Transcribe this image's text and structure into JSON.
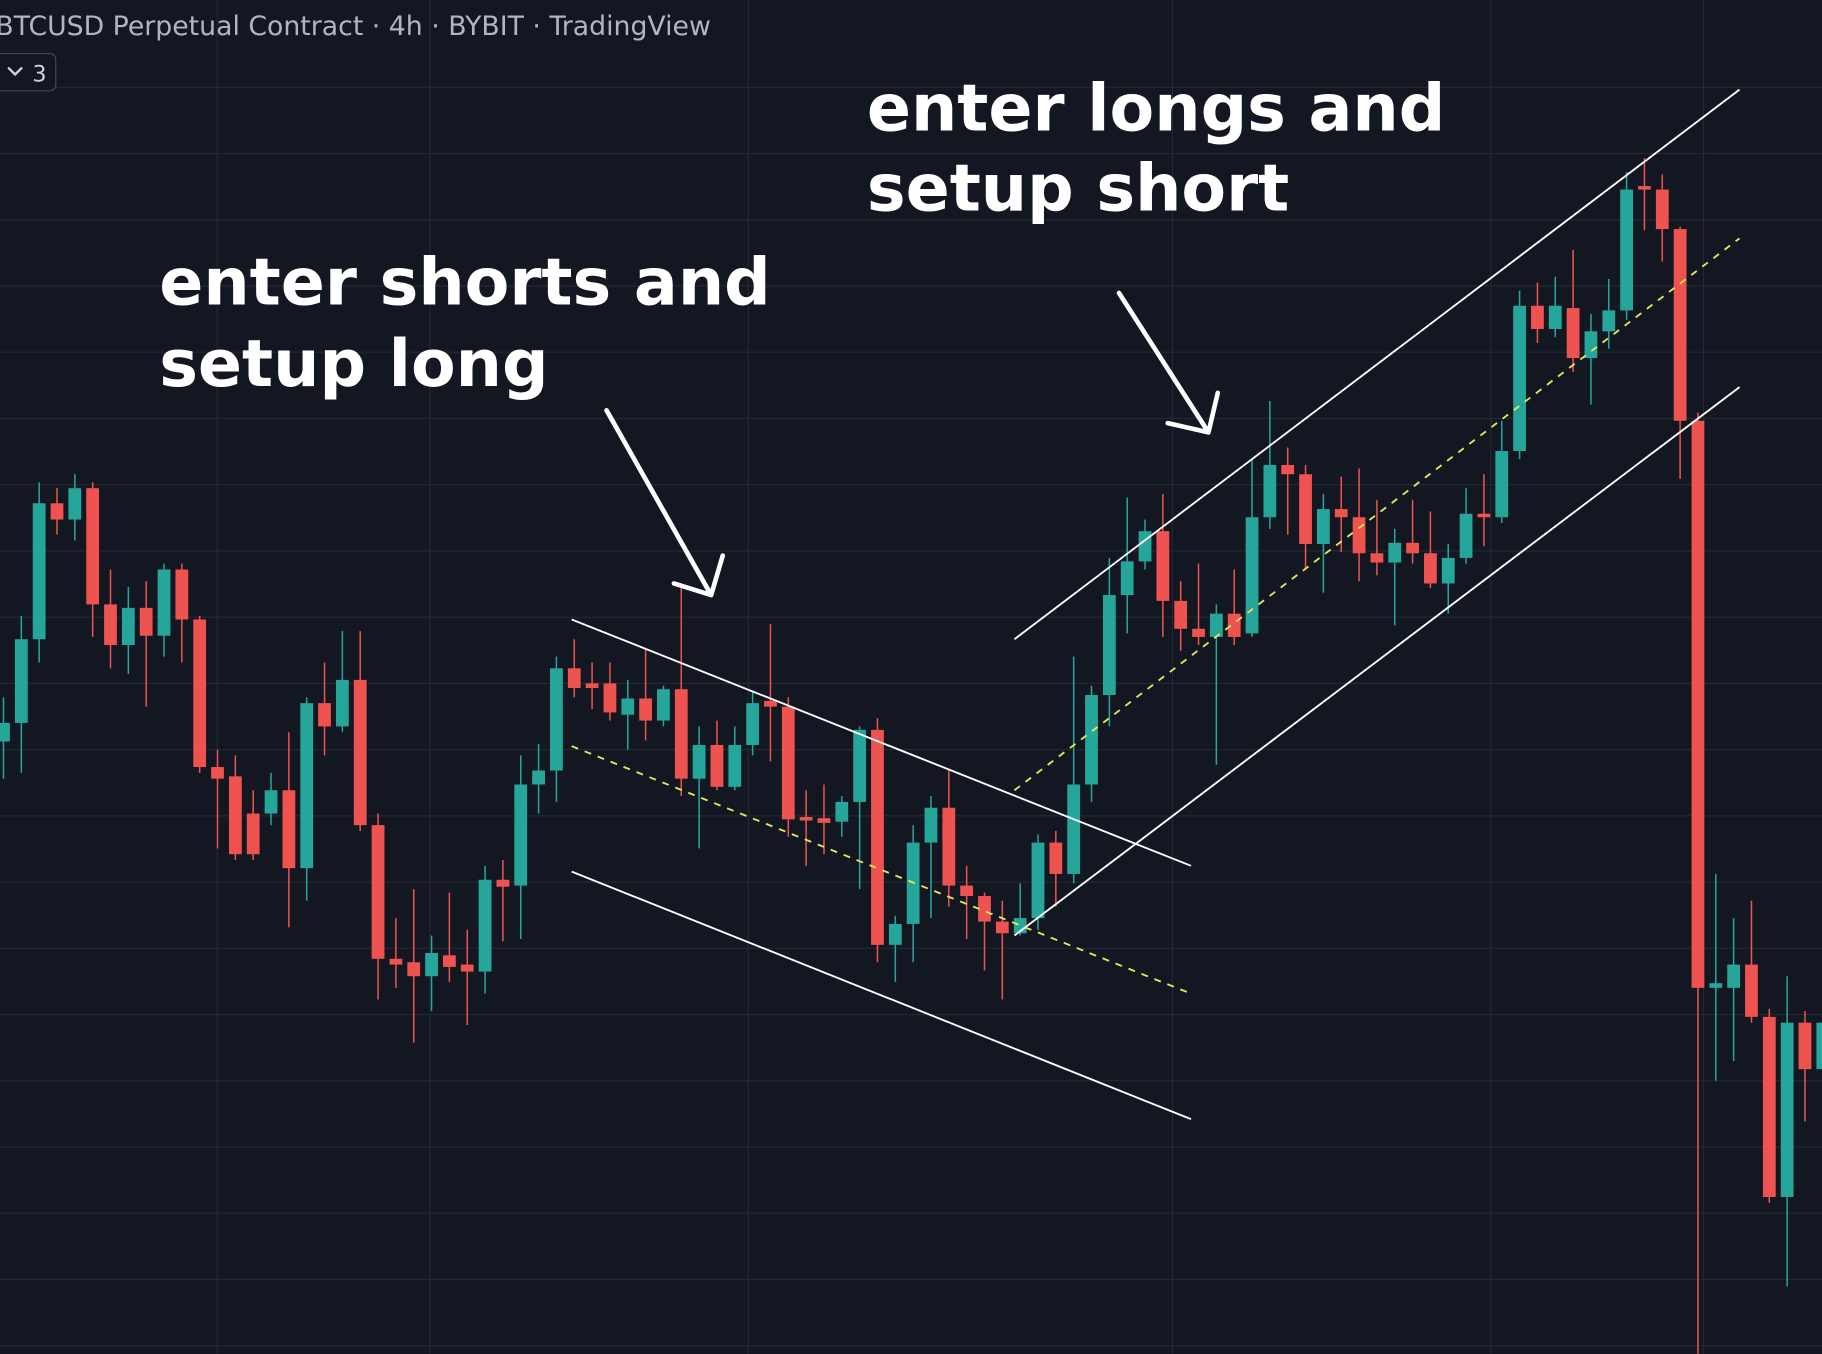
{
  "chart_data": {
    "type": "candlestick",
    "title": "BTCUSD Perpetual Contract · 4h · BYBIT · TradingView",
    "badge": "3",
    "annotations": [
      [
        "enter shorts and",
        "setup long"
      ],
      [
        "enter longs and",
        "setup short"
      ]
    ],
    "up_color": "#26a69a",
    "down_color": "#ef5350",
    "ylim": [
      0,
      1165
    ],
    "open": [
      527,
      543,
      615,
      732,
      718,
      745,
      645,
      610,
      642,
      618,
      675,
      632,
      505,
      497,
      465,
      465,
      485,
      418,
      560,
      540,
      580,
      455,
      340,
      337,
      325,
      343,
      335,
      329,
      408,
      403,
      490,
      502,
      590,
      577,
      577,
      550,
      564,
      545,
      572,
      495,
      524,
      488,
      524,
      562,
      557,
      462,
      461,
      458,
      475,
      537,
      352,
      370,
      440,
      470,
      403,
      394,
      372,
      362,
      375,
      440,
      413,
      490,
      567,
      653,
      682,
      708,
      648,
      624,
      617,
      637,
      620,
      720,
      765,
      757,
      697,
      727,
      720,
      689,
      681,
      698,
      689,
      663,
      685,
      723,
      720,
      777,
      902,
      882,
      900,
      857,
      880,
      898,
      1005,
      1002,
      968,
      803,
      315,
      315,
      335,
      290,
      135,
      285,
      245
    ],
    "high": [
      565,
      635,
      750,
      745,
      757,
      750,
      675,
      660,
      665,
      680,
      680,
      635,
      520,
      515,
      485,
      500,
      535,
      565,
      595,
      622,
      622,
      465,
      375,
      400,
      360,
      397,
      365,
      420,
      425,
      515,
      525,
      600,
      615,
      595,
      595,
      580,
      607,
      575,
      660,
      540,
      545,
      540,
      570,
      628,
      565,
      485,
      490,
      480,
      540,
      547,
      377,
      455,
      480,
      502,
      420,
      397,
      390,
      405,
      447,
      450,
      600,
      575,
      685,
      737,
      718,
      740,
      665,
      680,
      645,
      675,
      770,
      820,
      780,
      765,
      740,
      755,
      762,
      735,
      710,
      735,
      725,
      697,
      745,
      757,
      803,
      915,
      922,
      927,
      950,
      895,
      925,
      1017,
      1029,
      1015,
      970,
      810,
      413,
      375,
      390,
      297,
      325,
      295,
      337
    ],
    "low": [
      495,
      500,
      595,
      705,
      700,
      617,
      590,
      585,
      557,
      600,
      595,
      500,
      435,
      425,
      425,
      455,
      367,
      390,
      515,
      535,
      450,
      305,
      315,
      268,
      295,
      320,
      283,
      310,
      355,
      357,
      465,
      475,
      565,
      555,
      545,
      520,
      528,
      540,
      480,
      435,
      485,
      485,
      515,
      510,
      445,
      420,
      430,
      445,
      400,
      337,
      320,
      337,
      375,
      385,
      357,
      330,
      305,
      360,
      365,
      385,
      405,
      475,
      540,
      620,
      675,
      617,
      605,
      610,
      507,
      610,
      617,
      710,
      705,
      675,
      655,
      690,
      665,
      670,
      627,
      680,
      659,
      637,
      680,
      695,
      715,
      770,
      870,
      875,
      845,
      817,
      865,
      890,
      967,
      940,
      753,
      0,
      235,
      252,
      285,
      130,
      58,
      200,
      225
    ],
    "close": [
      543,
      615,
      732,
      718,
      745,
      645,
      610,
      642,
      618,
      675,
      632,
      505,
      495,
      430,
      430,
      485,
      418,
      560,
      540,
      580,
      455,
      340,
      335,
      325,
      345,
      333,
      329,
      408,
      402,
      490,
      502,
      590,
      573,
      573,
      552,
      564,
      545,
      572,
      495,
      524,
      488,
      524,
      560,
      557,
      460,
      459,
      457,
      475,
      537,
      352,
      370,
      440,
      470,
      403,
      394,
      372,
      362,
      375,
      440,
      413,
      490,
      567,
      653,
      682,
      708,
      648,
      624,
      617,
      637,
      617,
      720,
      765,
      757,
      697,
      727,
      720,
      689,
      681,
      698,
      689,
      663,
      685,
      723,
      720,
      777,
      902,
      882,
      902,
      857,
      880,
      898,
      1002,
      1002,
      968,
      803,
      315,
      319,
      335,
      290,
      135,
      285,
      245,
      285
    ]
  }
}
